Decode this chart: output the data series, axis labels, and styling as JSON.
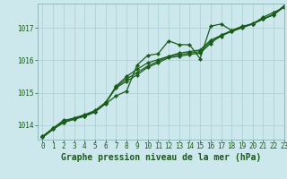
{
  "background_color": "#cde8ec",
  "plot_bg_color": "#cde8ec",
  "grid_color": "#aacdd2",
  "line_color": "#1a5c1a",
  "title": "Graphe pression niveau de la mer (hPa)",
  "xlim": [
    -0.5,
    23
  ],
  "ylim": [
    1013.55,
    1017.75
  ],
  "yticks": [
    1014,
    1015,
    1016,
    1017
  ],
  "xticks": [
    0,
    1,
    2,
    3,
    4,
    5,
    6,
    7,
    8,
    9,
    10,
    11,
    12,
    13,
    14,
    15,
    16,
    17,
    18,
    19,
    20,
    21,
    22,
    23
  ],
  "series": [
    {
      "x": [
        0,
        1,
        2,
        3,
        4,
        5,
        6,
        7,
        8,
        9,
        10,
        11,
        12,
        13,
        14,
        15,
        16,
        17,
        18,
        19,
        20,
        21,
        22,
        23
      ],
      "y": [
        1013.65,
        1013.9,
        1014.15,
        1014.2,
        1014.3,
        1014.42,
        1014.65,
        1014.9,
        1015.05,
        1015.85,
        1016.15,
        1016.2,
        1016.6,
        1016.48,
        1016.48,
        1016.05,
        1017.05,
        1017.12,
        1016.92,
        1017.05,
        1017.12,
        1017.33,
        1017.48,
        1017.63
      ]
    },
    {
      "x": [
        0,
        1,
        2,
        3,
        4,
        5,
        6,
        7,
        8,
        9,
        10,
        11,
        12,
        13,
        14,
        15,
        16,
        17,
        18,
        19,
        20,
        21,
        22,
        23
      ],
      "y": [
        1013.65,
        1013.9,
        1014.12,
        1014.22,
        1014.32,
        1014.45,
        1014.7,
        1015.15,
        1015.35,
        1015.55,
        1015.78,
        1015.92,
        1016.08,
        1016.12,
        1016.18,
        1016.22,
        1016.52,
        1016.78,
        1016.88,
        1017.02,
        1017.12,
        1017.28,
        1017.42,
        1017.68
      ]
    },
    {
      "x": [
        0,
        1,
        2,
        3,
        4,
        5,
        6,
        7,
        8,
        9,
        10,
        11,
        12,
        13,
        14,
        15,
        16,
        17,
        18,
        19,
        20,
        21,
        22,
        23
      ],
      "y": [
        1013.62,
        1013.87,
        1014.08,
        1014.18,
        1014.28,
        1014.42,
        1014.68,
        1015.2,
        1015.5,
        1015.72,
        1015.92,
        1016.02,
        1016.12,
        1016.22,
        1016.27,
        1016.32,
        1016.62,
        1016.77,
        1016.92,
        1017.02,
        1017.14,
        1017.27,
        1017.42,
        1017.68
      ]
    },
    {
      "x": [
        0,
        1,
        2,
        3,
        4,
        5,
        6,
        7,
        8,
        9,
        10,
        11,
        12,
        13,
        14,
        15,
        16,
        17,
        18,
        19,
        20,
        21,
        22,
        23
      ],
      "y": [
        1013.62,
        1013.87,
        1014.08,
        1014.18,
        1014.27,
        1014.4,
        1014.67,
        1015.18,
        1015.42,
        1015.62,
        1015.82,
        1015.97,
        1016.12,
        1016.17,
        1016.22,
        1016.27,
        1016.57,
        1016.74,
        1016.9,
        1017.0,
        1017.12,
        1017.27,
        1017.4,
        1017.65
      ]
    }
  ],
  "title_fontsize": 7,
  "tick_fontsize": 5.5,
  "title_color": "#1a5c1a",
  "tick_color": "#1a5c1a",
  "marker_color": "#1a5c1a",
  "markersize": 2.2,
  "linewidth": 0.9
}
